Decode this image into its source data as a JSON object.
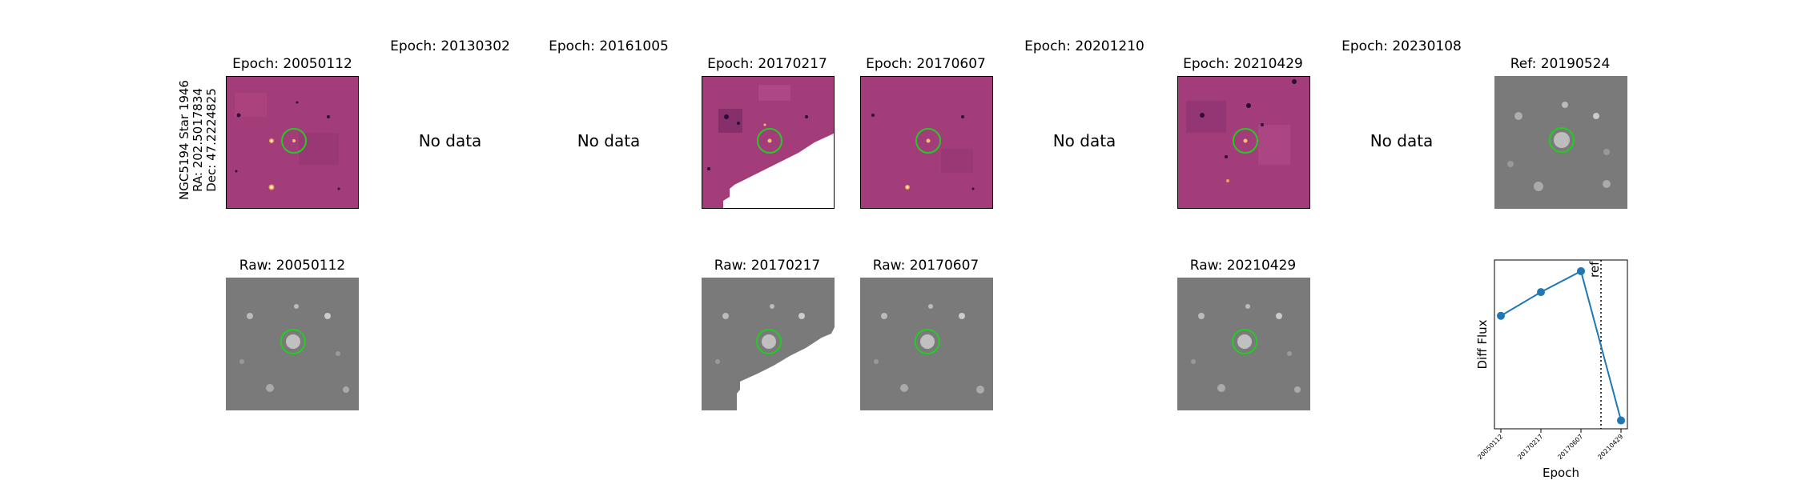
{
  "star_label": {
    "name": "NGC5194 Star 1946",
    "ra": "RA: 202.5017834",
    "dec": "Dec: 47.2224825"
  },
  "no_data_text": "No data",
  "epochs": [
    {
      "title": "Epoch: 20050112",
      "has_data": true,
      "raw_title": "Raw: 20050112"
    },
    {
      "title": "Epoch: 20130302",
      "has_data": false
    },
    {
      "title": "Epoch: 20161005",
      "has_data": false
    },
    {
      "title": "Epoch: 20170217",
      "has_data": true,
      "raw_title": "Raw: 20170217"
    },
    {
      "title": "Epoch: 20170607",
      "has_data": true,
      "raw_title": "Raw: 20170607"
    },
    {
      "title": "Epoch: 20201210",
      "has_data": false
    },
    {
      "title": "Epoch: 20210429",
      "has_data": true,
      "raw_title": "Raw: 20210429"
    },
    {
      "title": "Epoch: 20230108",
      "has_data": false
    }
  ],
  "ref_title": "Ref: 20190524",
  "colors": {
    "diff_bg": "#a33d7a",
    "raw_bg": "#7a7a7a",
    "circle": "#22cc22",
    "line": "#1f77b4"
  },
  "chart_data": {
    "type": "line",
    "x": [
      "20050112",
      "20170217",
      "20170607",
      "20210429"
    ],
    "y": [
      0.55,
      0.72,
      0.87,
      -0.2
    ],
    "ylabel": "Diff Flux",
    "xlabel": "Epoch",
    "ref_label": "ref",
    "ref_position_between": [
      "20170607",
      "20210429"
    ],
    "ylim": [
      -0.26,
      0.95
    ]
  }
}
